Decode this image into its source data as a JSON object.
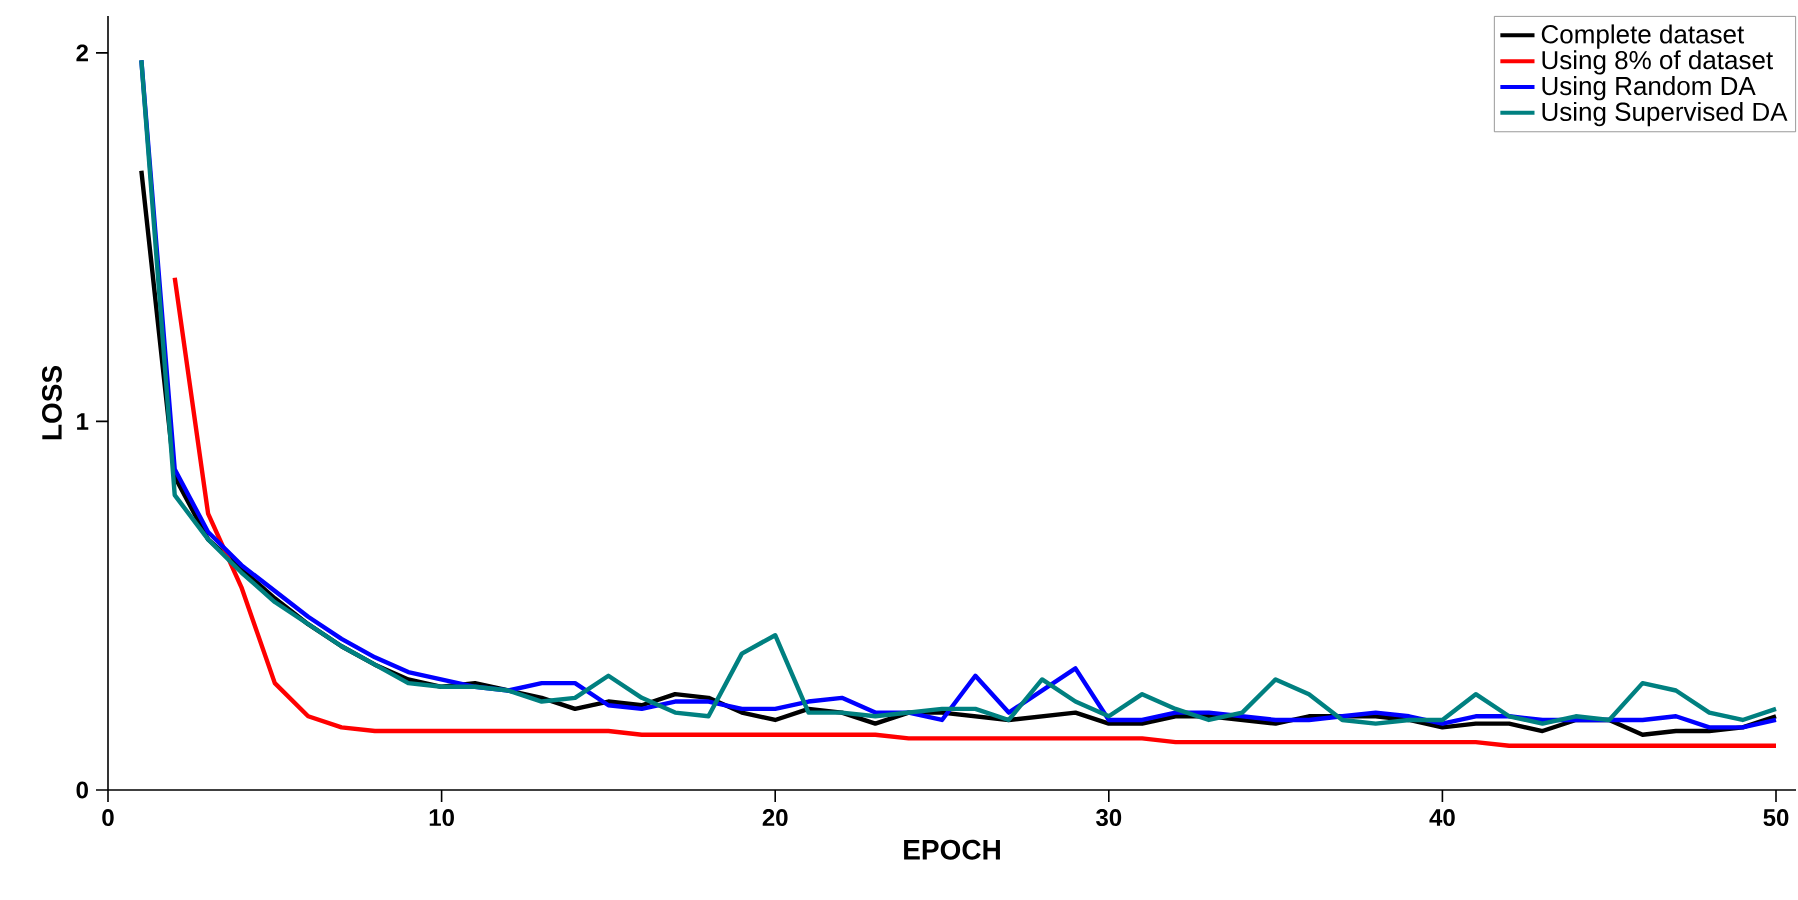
{
  "chart_data": {
    "type": "line",
    "xlabel": "EPOCH",
    "ylabel": "LOSS",
    "x": [
      1,
      2,
      3,
      4,
      5,
      6,
      7,
      8,
      9,
      10,
      11,
      12,
      13,
      14,
      15,
      16,
      17,
      18,
      19,
      20,
      21,
      22,
      23,
      24,
      25,
      26,
      27,
      28,
      29,
      30,
      31,
      32,
      33,
      34,
      35,
      36,
      37,
      38,
      39,
      40,
      41,
      42,
      43,
      44,
      45,
      46,
      47,
      48,
      49,
      50
    ],
    "series": [
      {
        "name": "Complete dataset",
        "color": "#000000",
        "values": [
          1.68,
          0.85,
          0.68,
          0.6,
          0.52,
          0.45,
          0.39,
          0.34,
          0.3,
          0.28,
          0.29,
          0.27,
          0.25,
          0.22,
          0.24,
          0.23,
          0.26,
          0.25,
          0.21,
          0.19,
          0.22,
          0.21,
          0.18,
          0.21,
          0.21,
          0.2,
          0.19,
          0.2,
          0.21,
          0.18,
          0.18,
          0.2,
          0.2,
          0.19,
          0.18,
          0.2,
          0.2,
          0.2,
          0.19,
          0.17,
          0.18,
          0.18,
          0.16,
          0.19,
          0.19,
          0.15,
          0.16,
          0.16,
          0.17,
          0.2
        ]
      },
      {
        "name": "Using 8% of dataset",
        "color": "#ff0000",
        "values": [
          null,
          1.39,
          0.75,
          0.55,
          0.29,
          0.2,
          0.17,
          0.16,
          0.16,
          0.16,
          0.16,
          0.16,
          0.16,
          0.16,
          0.16,
          0.15,
          0.15,
          0.15,
          0.15,
          0.15,
          0.15,
          0.15,
          0.15,
          0.14,
          0.14,
          0.14,
          0.14,
          0.14,
          0.14,
          0.14,
          0.14,
          0.13,
          0.13,
          0.13,
          0.13,
          0.13,
          0.13,
          0.13,
          0.13,
          0.13,
          0.13,
          0.12,
          0.12,
          0.12,
          0.12,
          0.12,
          0.12,
          0.12,
          0.12,
          0.12
        ]
      },
      {
        "name": "Using Random DA",
        "color": "#0000ff",
        "values": [
          1.98,
          0.87,
          0.7,
          0.61,
          0.54,
          0.47,
          0.41,
          0.36,
          0.32,
          0.3,
          0.28,
          0.27,
          0.29,
          0.29,
          0.23,
          0.22,
          0.24,
          0.24,
          0.22,
          0.22,
          0.24,
          0.25,
          0.21,
          0.21,
          0.19,
          0.31,
          0.21,
          0.27,
          0.33,
          0.19,
          0.19,
          0.21,
          0.21,
          0.2,
          0.19,
          0.19,
          0.2,
          0.21,
          0.2,
          0.18,
          0.2,
          0.2,
          0.19,
          0.19,
          0.19,
          0.19,
          0.2,
          0.17,
          0.17,
          0.19
        ]
      },
      {
        "name": "Using Supervised DA",
        "color": "#008080",
        "values": [
          1.98,
          0.8,
          0.68,
          0.59,
          0.51,
          0.45,
          0.39,
          0.34,
          0.29,
          0.28,
          0.28,
          0.27,
          0.24,
          0.25,
          0.31,
          0.25,
          0.21,
          0.2,
          0.37,
          0.42,
          0.21,
          0.21,
          0.2,
          0.21,
          0.22,
          0.22,
          0.19,
          0.3,
          0.24,
          0.2,
          0.26,
          0.22,
          0.19,
          0.21,
          0.3,
          0.26,
          0.19,
          0.18,
          0.19,
          0.19,
          0.26,
          0.2,
          0.18,
          0.2,
          0.19,
          0.29,
          0.27,
          0.21,
          0.19,
          0.22
        ]
      }
    ],
    "xlim": [
      0,
      50.6
    ],
    "ylim": [
      0,
      2.1
    ],
    "xticks": [
      0,
      10,
      20,
      30,
      40,
      50
    ],
    "yticks": [
      0,
      1,
      2
    ],
    "legend": "top right",
    "grid": false,
    "marker": "none",
    "line_style": "solid"
  }
}
